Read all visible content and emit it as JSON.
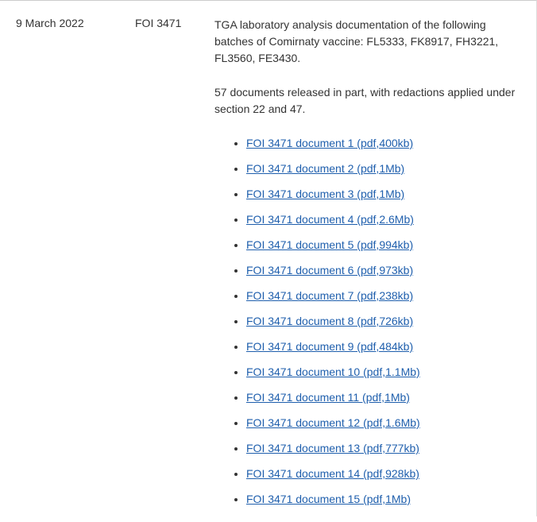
{
  "entry": {
    "date": "9 March 2022",
    "reference": "FOI 3471",
    "description_para1": "TGA laboratory analysis documentation of the following batches of Comirnaty vaccine: FL5333, FK8917, FH3221, FL3560, FE3430.",
    "description_para2": "57 documents released in part, with redactions applied under section 22 and 47.",
    "documents": [
      {
        "label": "FOI 3471 document 1 (pdf,400kb)"
      },
      {
        "label": "FOI 3471 document 2 (pdf,1Mb)"
      },
      {
        "label": "FOI 3471 document 3 (pdf,1Mb)"
      },
      {
        "label": "FOI 3471 document 4 (pdf,2.6Mb)"
      },
      {
        "label": "FOI 3471 document 5 (pdf,994kb)"
      },
      {
        "label": "FOI 3471 document 6 (pdf,973kb)"
      },
      {
        "label": "FOI 3471 document 7 (pdf,238kb)"
      },
      {
        "label": "FOI 3471 document 8 (pdf,726kb)"
      },
      {
        "label": "FOI 3471 document 9 (pdf,484kb)"
      },
      {
        "label": "FOI 3471 document 10 (pdf,1.1Mb)"
      },
      {
        "label": "FOI 3471 document 11 (pdf,1Mb)"
      },
      {
        "label": "FOI 3471 document 12 (pdf,1.6Mb)"
      },
      {
        "label": "FOI 3471 document 13 (pdf,777kb)"
      },
      {
        "label": "FOI 3471 document 14 (pdf,928kb)"
      },
      {
        "label": "FOI 3471 document 15 (pdf,1Mb)"
      }
    ]
  }
}
